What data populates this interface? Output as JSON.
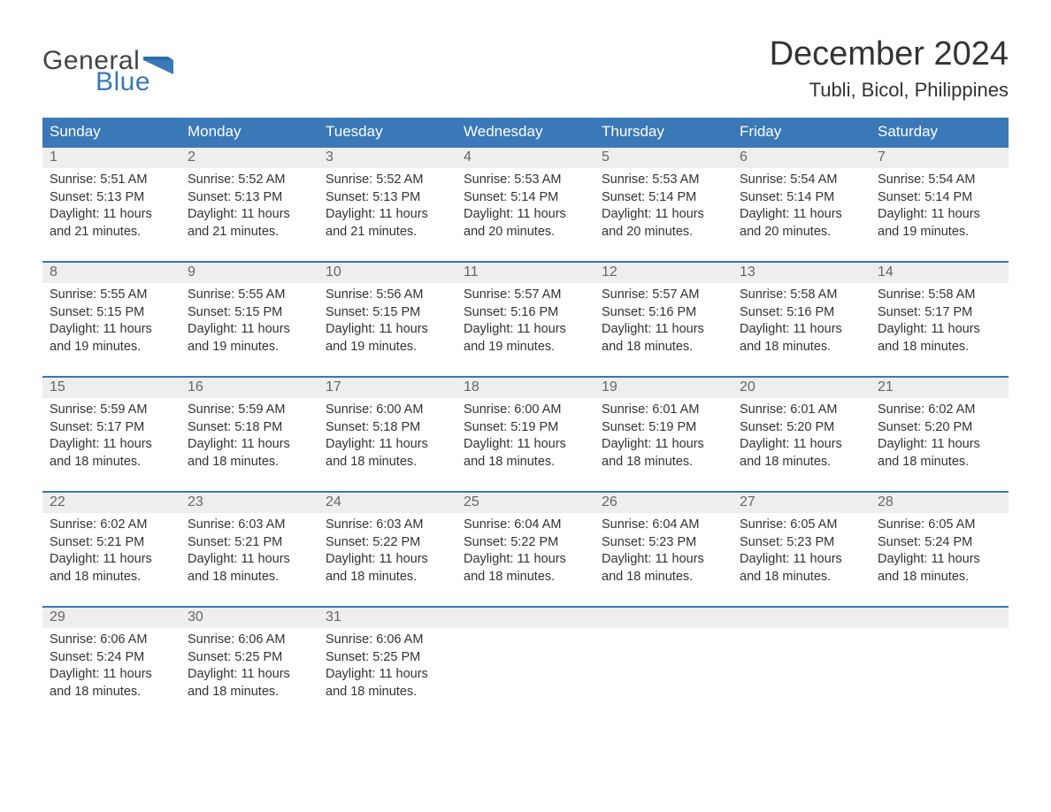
{
  "logo": {
    "word1": "General",
    "word2": "Blue",
    "accent_color": "#3a78b8",
    "text_color": "#444444"
  },
  "title": "December 2024",
  "location": "Tubli, Bicol, Philippines",
  "colors": {
    "header_bg": "#3a78b8",
    "header_fg": "#ffffff",
    "daynum_bg": "#eeeeee",
    "daynum_fg": "#666666",
    "body_fg": "#333333",
    "rule": "#3a78b8"
  },
  "weekdays": [
    "Sunday",
    "Monday",
    "Tuesday",
    "Wednesday",
    "Thursday",
    "Friday",
    "Saturday"
  ],
  "labels": {
    "sunrise": "Sunrise: ",
    "sunset": "Sunset: ",
    "daylight_prefix": "Daylight: ",
    "hours_word": " hours",
    "and_word": "and ",
    "minutes_word": " minutes."
  },
  "days": [
    {
      "n": 1,
      "sunrise": "5:51 AM",
      "sunset": "5:13 PM",
      "dl_h": 11,
      "dl_m": 21
    },
    {
      "n": 2,
      "sunrise": "5:52 AM",
      "sunset": "5:13 PM",
      "dl_h": 11,
      "dl_m": 21
    },
    {
      "n": 3,
      "sunrise": "5:52 AM",
      "sunset": "5:13 PM",
      "dl_h": 11,
      "dl_m": 21
    },
    {
      "n": 4,
      "sunrise": "5:53 AM",
      "sunset": "5:14 PM",
      "dl_h": 11,
      "dl_m": 20
    },
    {
      "n": 5,
      "sunrise": "5:53 AM",
      "sunset": "5:14 PM",
      "dl_h": 11,
      "dl_m": 20
    },
    {
      "n": 6,
      "sunrise": "5:54 AM",
      "sunset": "5:14 PM",
      "dl_h": 11,
      "dl_m": 20
    },
    {
      "n": 7,
      "sunrise": "5:54 AM",
      "sunset": "5:14 PM",
      "dl_h": 11,
      "dl_m": 19
    },
    {
      "n": 8,
      "sunrise": "5:55 AM",
      "sunset": "5:15 PM",
      "dl_h": 11,
      "dl_m": 19
    },
    {
      "n": 9,
      "sunrise": "5:55 AM",
      "sunset": "5:15 PM",
      "dl_h": 11,
      "dl_m": 19
    },
    {
      "n": 10,
      "sunrise": "5:56 AM",
      "sunset": "5:15 PM",
      "dl_h": 11,
      "dl_m": 19
    },
    {
      "n": 11,
      "sunrise": "5:57 AM",
      "sunset": "5:16 PM",
      "dl_h": 11,
      "dl_m": 19
    },
    {
      "n": 12,
      "sunrise": "5:57 AM",
      "sunset": "5:16 PM",
      "dl_h": 11,
      "dl_m": 18
    },
    {
      "n": 13,
      "sunrise": "5:58 AM",
      "sunset": "5:16 PM",
      "dl_h": 11,
      "dl_m": 18
    },
    {
      "n": 14,
      "sunrise": "5:58 AM",
      "sunset": "5:17 PM",
      "dl_h": 11,
      "dl_m": 18
    },
    {
      "n": 15,
      "sunrise": "5:59 AM",
      "sunset": "5:17 PM",
      "dl_h": 11,
      "dl_m": 18
    },
    {
      "n": 16,
      "sunrise": "5:59 AM",
      "sunset": "5:18 PM",
      "dl_h": 11,
      "dl_m": 18
    },
    {
      "n": 17,
      "sunrise": "6:00 AM",
      "sunset": "5:18 PM",
      "dl_h": 11,
      "dl_m": 18
    },
    {
      "n": 18,
      "sunrise": "6:00 AM",
      "sunset": "5:19 PM",
      "dl_h": 11,
      "dl_m": 18
    },
    {
      "n": 19,
      "sunrise": "6:01 AM",
      "sunset": "5:19 PM",
      "dl_h": 11,
      "dl_m": 18
    },
    {
      "n": 20,
      "sunrise": "6:01 AM",
      "sunset": "5:20 PM",
      "dl_h": 11,
      "dl_m": 18
    },
    {
      "n": 21,
      "sunrise": "6:02 AM",
      "sunset": "5:20 PM",
      "dl_h": 11,
      "dl_m": 18
    },
    {
      "n": 22,
      "sunrise": "6:02 AM",
      "sunset": "5:21 PM",
      "dl_h": 11,
      "dl_m": 18
    },
    {
      "n": 23,
      "sunrise": "6:03 AM",
      "sunset": "5:21 PM",
      "dl_h": 11,
      "dl_m": 18
    },
    {
      "n": 24,
      "sunrise": "6:03 AM",
      "sunset": "5:22 PM",
      "dl_h": 11,
      "dl_m": 18
    },
    {
      "n": 25,
      "sunrise": "6:04 AM",
      "sunset": "5:22 PM",
      "dl_h": 11,
      "dl_m": 18
    },
    {
      "n": 26,
      "sunrise": "6:04 AM",
      "sunset": "5:23 PM",
      "dl_h": 11,
      "dl_m": 18
    },
    {
      "n": 27,
      "sunrise": "6:05 AM",
      "sunset": "5:23 PM",
      "dl_h": 11,
      "dl_m": 18
    },
    {
      "n": 28,
      "sunrise": "6:05 AM",
      "sunset": "5:24 PM",
      "dl_h": 11,
      "dl_m": 18
    },
    {
      "n": 29,
      "sunrise": "6:06 AM",
      "sunset": "5:24 PM",
      "dl_h": 11,
      "dl_m": 18
    },
    {
      "n": 30,
      "sunrise": "6:06 AM",
      "sunset": "5:25 PM",
      "dl_h": 11,
      "dl_m": 18
    },
    {
      "n": 31,
      "sunrise": "6:06 AM",
      "sunset": "5:25 PM",
      "dl_h": 11,
      "dl_m": 18
    }
  ],
  "first_weekday_index": 0,
  "total_cells": 35
}
